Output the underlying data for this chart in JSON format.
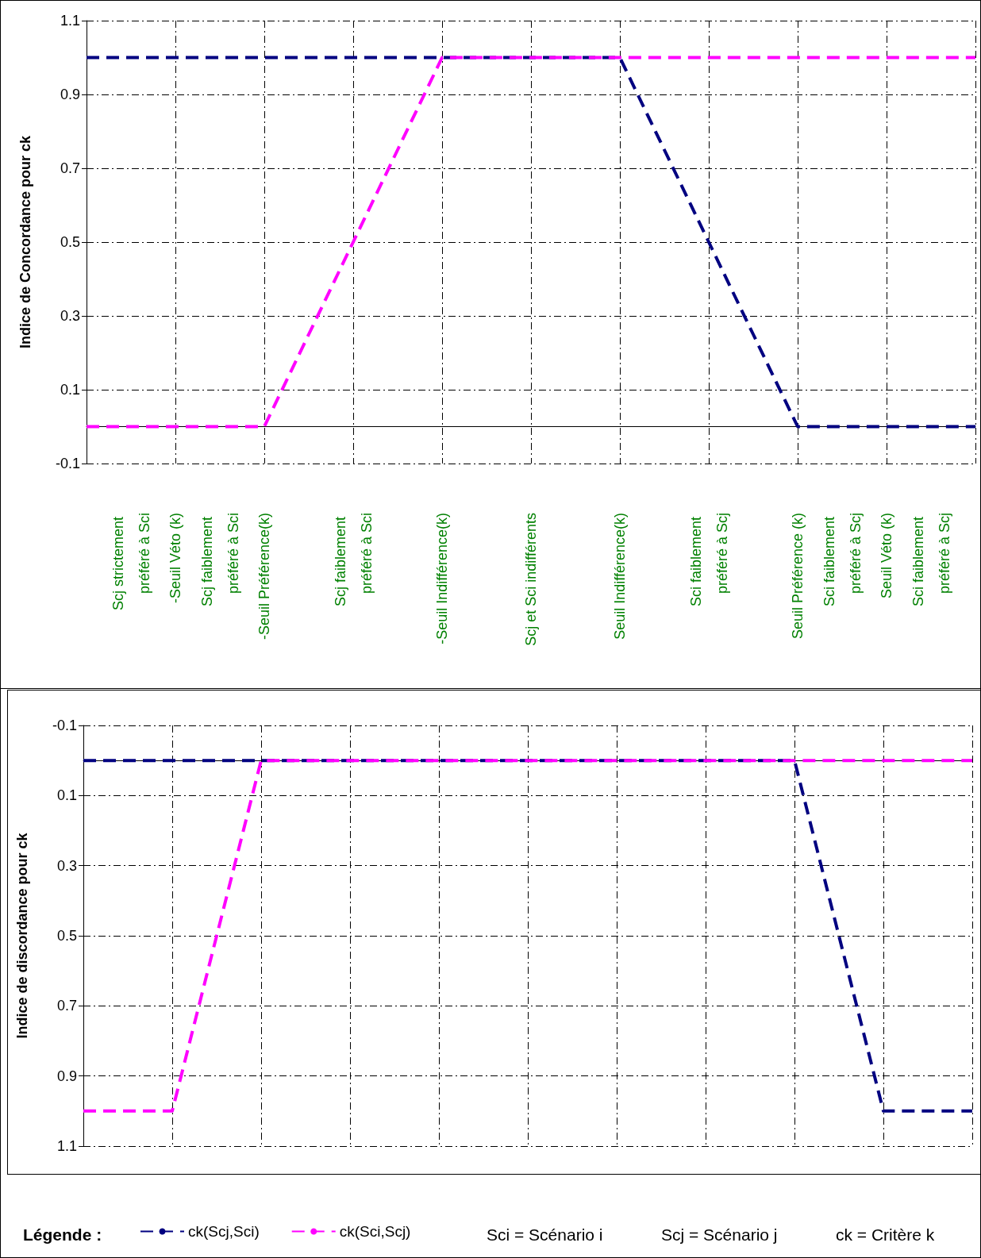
{
  "chart_data": [
    {
      "type": "line",
      "ylabel": "Indice de Concordance pour ck",
      "categories": [
        null,
        "Scj strictement préféré à Sci",
        "-Seuil Véto (k)",
        "Scj faiblement préféré à Sci",
        "-Seuil Préférence(k)",
        null,
        "Scj faiblement préféré à Sci",
        null,
        "-Seuil Indifférence(k)",
        null,
        "Scj et Sci indifférents",
        null,
        "Seuil Indifférence(k)",
        null,
        "Sci faiblement préféré à Scj",
        null,
        "Seuil Préférence (k)",
        "Sci faiblement préféré à Scj",
        "Seuil Véto (k)",
        "Sci faiblement préféré à Scj",
        null
      ],
      "series": [
        {
          "color": "#000080",
          "line_style": "dashed",
          "values": [
            1,
            1,
            1,
            1,
            1,
            1,
            1,
            1,
            1,
            1,
            1,
            1,
            1,
            0.75,
            0.5,
            0.25,
            0,
            0,
            0,
            0,
            0
          ]
        },
        {
          "color": "#ff00ff",
          "line_style": "dashed",
          "values": [
            0,
            0,
            0,
            0,
            0,
            0.25,
            0.5,
            0.75,
            1,
            1,
            1,
            1,
            1,
            1,
            1,
            1,
            1,
            1,
            1,
            1,
            1
          ]
        }
      ],
      "ylim": [
        -0.1,
        1.1
      ],
      "yticks": [
        -0.1,
        0.1,
        0.3,
        0.5,
        0.7,
        0.9,
        1.1
      ],
      "grid": true,
      "marker": "none"
    },
    {
      "type": "line",
      "ylabel": "Indice de discordance pour ck",
      "categories": [
        null,
        "Scj strictement préféré à Sci",
        "-Seuil Véto (k)",
        "Scj faiblement préféré à Sci",
        "-Seuil Préférence(k)",
        null,
        "Scj faiblement préféré à Sci",
        null,
        "-Seuil Indifférence(k)",
        null,
        "Scj et Sci indifférents",
        null,
        "Seuil Indifférence(k)",
        null,
        "Sci faiblement préféré à Scj",
        null,
        "Seuil Préférence (k)",
        "Sci faiblement préféré à Scj",
        "Seuil Véto (k)",
        "Sci faiblement préféré à Scj",
        null
      ],
      "tick_labels": "y",
      "series": [
        {
          "name": "ck(Scj,Sci)",
          "color": "#000080",
          "line_style": "dashed",
          "values": [
            0,
            0,
            0,
            0,
            0,
            0,
            0,
            0,
            0,
            0,
            0,
            0,
            0,
            0,
            0,
            0,
            0,
            0.5,
            1,
            1,
            1
          ]
        },
        {
          "name": "ck(Sci,Scj)",
          "color": "#ff00ff",
          "line_style": "dashed",
          "values": [
            1,
            1,
            1,
            0.5,
            0,
            0,
            0,
            0,
            0,
            0,
            0,
            0,
            0,
            0,
            0,
            0,
            0,
            0,
            0,
            0,
            0
          ]
        }
      ],
      "ylim": [
        1.1,
        -0.1
      ],
      "yticks": [
        -0.1,
        0.1,
        0.3,
        0.5,
        0.7,
        0.9,
        1.1
      ],
      "grid": true,
      "marker": "none",
      "legend": "bottom",
      "legend_title": "Légende :",
      "annotations": [
        "Sci = Scénario i",
        "Scj = Scénario j",
        "ck = Critère k"
      ]
    }
  ]
}
